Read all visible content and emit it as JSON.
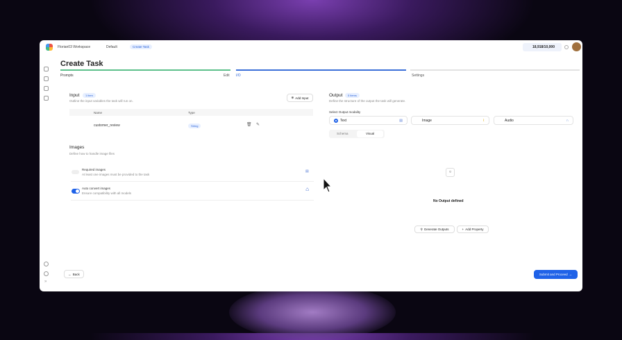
{
  "header": {
    "workspace": "Florian03 Workspace",
    "project": "Default",
    "current": "Create Task",
    "credits": "18,918/10,000"
  },
  "page": {
    "title": "Create Task"
  },
  "steps": [
    {
      "label": "Prompts",
      "action": "Edit",
      "color": "#5cc08a"
    },
    {
      "label": "I/O",
      "color": "#3b6fd8"
    },
    {
      "label": "Settings",
      "color": "#e2e2e2"
    }
  ],
  "input": {
    "title": "Input",
    "badge": "1 item",
    "description": "Outline the input variables the task will run on.",
    "add_label": "Add Input",
    "columns": [
      "Name",
      "Type"
    ],
    "rows": [
      {
        "name": "customer_review",
        "type": "String"
      }
    ]
  },
  "images": {
    "title": "Images",
    "description": "Define how to handle image files",
    "options": [
      {
        "title": "Required images",
        "desc": "At least one images must be provided to the task",
        "enabled": false
      },
      {
        "title": "Auto convert images",
        "desc": "Ensure compatibility with all models",
        "enabled": true
      }
    ]
  },
  "output": {
    "title": "Output",
    "badge": "0 items",
    "description": "Define the structure of the output the task will generate.",
    "modality_label": "Select Output modality",
    "modalities": [
      "Text",
      "Image",
      "Audio"
    ],
    "selected": "Text",
    "tabs": [
      "Schema",
      "Visual"
    ],
    "active_tab": "Visual",
    "empty": "No Output defined",
    "generate_label": "Generate Outputs",
    "add_property_label": "Add Property"
  },
  "footer": {
    "back": "Back",
    "submit": "Submit and Proceed"
  },
  "colors": {
    "accent": "#1f62e8"
  }
}
